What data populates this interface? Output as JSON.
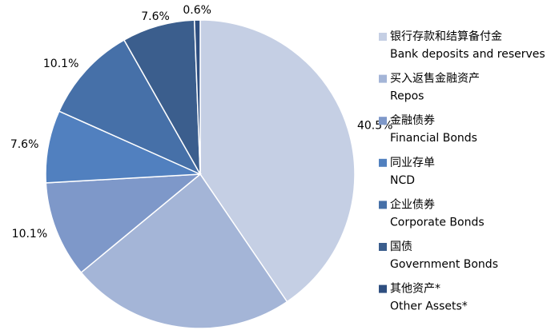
{
  "chart_data": {
    "type": "pie",
    "categories": [
      [
        "银行存款和结算备付金",
        "Bank deposits and reserves"
      ],
      [
        "买入返售金融资产",
        "Repos"
      ],
      [
        "金融债券",
        "Financial Bonds"
      ],
      [
        "同业存单",
        "NCD"
      ],
      [
        "企业债券",
        "Corporate Bonds"
      ],
      [
        "国债",
        "Government Bonds"
      ],
      [
        "其他资产*",
        "Other Assets*"
      ]
    ],
    "values": [
      40.5,
      23.5,
      10.1,
      7.6,
      10.1,
      7.6,
      0.6
    ],
    "value_labels": [
      "40.5%",
      "23.5%",
      "10.1%",
      "7.6%",
      "10.1%",
      "7.6%",
      "0.6%"
    ],
    "colors": [
      "#c5cfe4",
      "#a4b5d7",
      "#7e98c9",
      "#5180bf",
      "#4670a8",
      "#3b5e8d",
      "#2f4f80"
    ],
    "legend": "right"
  }
}
